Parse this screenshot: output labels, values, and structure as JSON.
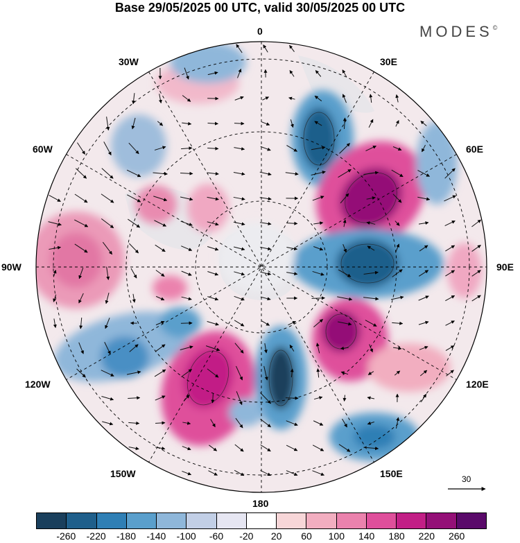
{
  "title": "Base 29/05/2025 00 UTC, valid 30/05/2025 00 UTC",
  "brand": "MODES",
  "brand_mark": "©",
  "longitude_labels": {
    "lon_0": "0",
    "lon_30e": "30E",
    "lon_60e": "60E",
    "lon_90e": "90E",
    "lon_120e": "120E",
    "lon_150e": "150E",
    "lon_180": "180",
    "lon_150w": "150W",
    "lon_120w": "120W",
    "lon_90w": "90W",
    "lon_60w": "60W",
    "lon_30w": "30W"
  },
  "reference_vector": {
    "label": "30"
  },
  "colorbar": {
    "colors": [
      "#1a3f5c",
      "#1f5f8b",
      "#2f7fb5",
      "#5a9fcc",
      "#8fb7da",
      "#c2cfe6",
      "#e6e6f2",
      "#ffffff",
      "#f7d6d8",
      "#f2aec0",
      "#eb82ad",
      "#df4f9b",
      "#c21f86",
      "#941077",
      "#5a0a6a"
    ],
    "ticks": [
      "-260",
      "-220",
      "-180",
      "-140",
      "-100",
      "-60",
      "-20",
      "20",
      "60",
      "100",
      "140",
      "180",
      "220",
      "260"
    ]
  },
  "map_data": {
    "projection": "north polar stereographic",
    "field": "shaded anomaly with wind vectors",
    "positive_centers": [
      {
        "near": "60E",
        "level": "260"
      },
      {
        "near": "150W",
        "level": "220"
      },
      {
        "near": "120E",
        "level": "220"
      },
      {
        "near": "90W",
        "level": "100"
      }
    ],
    "negative_centers": [
      {
        "near": "90E",
        "level": "-220"
      },
      {
        "near": "180",
        "level": "-260"
      },
      {
        "near": "30E",
        "level": "-220"
      },
      {
        "near": "120W",
        "level": "-180"
      },
      {
        "near": "150E",
        "level": "-180"
      }
    ]
  }
}
